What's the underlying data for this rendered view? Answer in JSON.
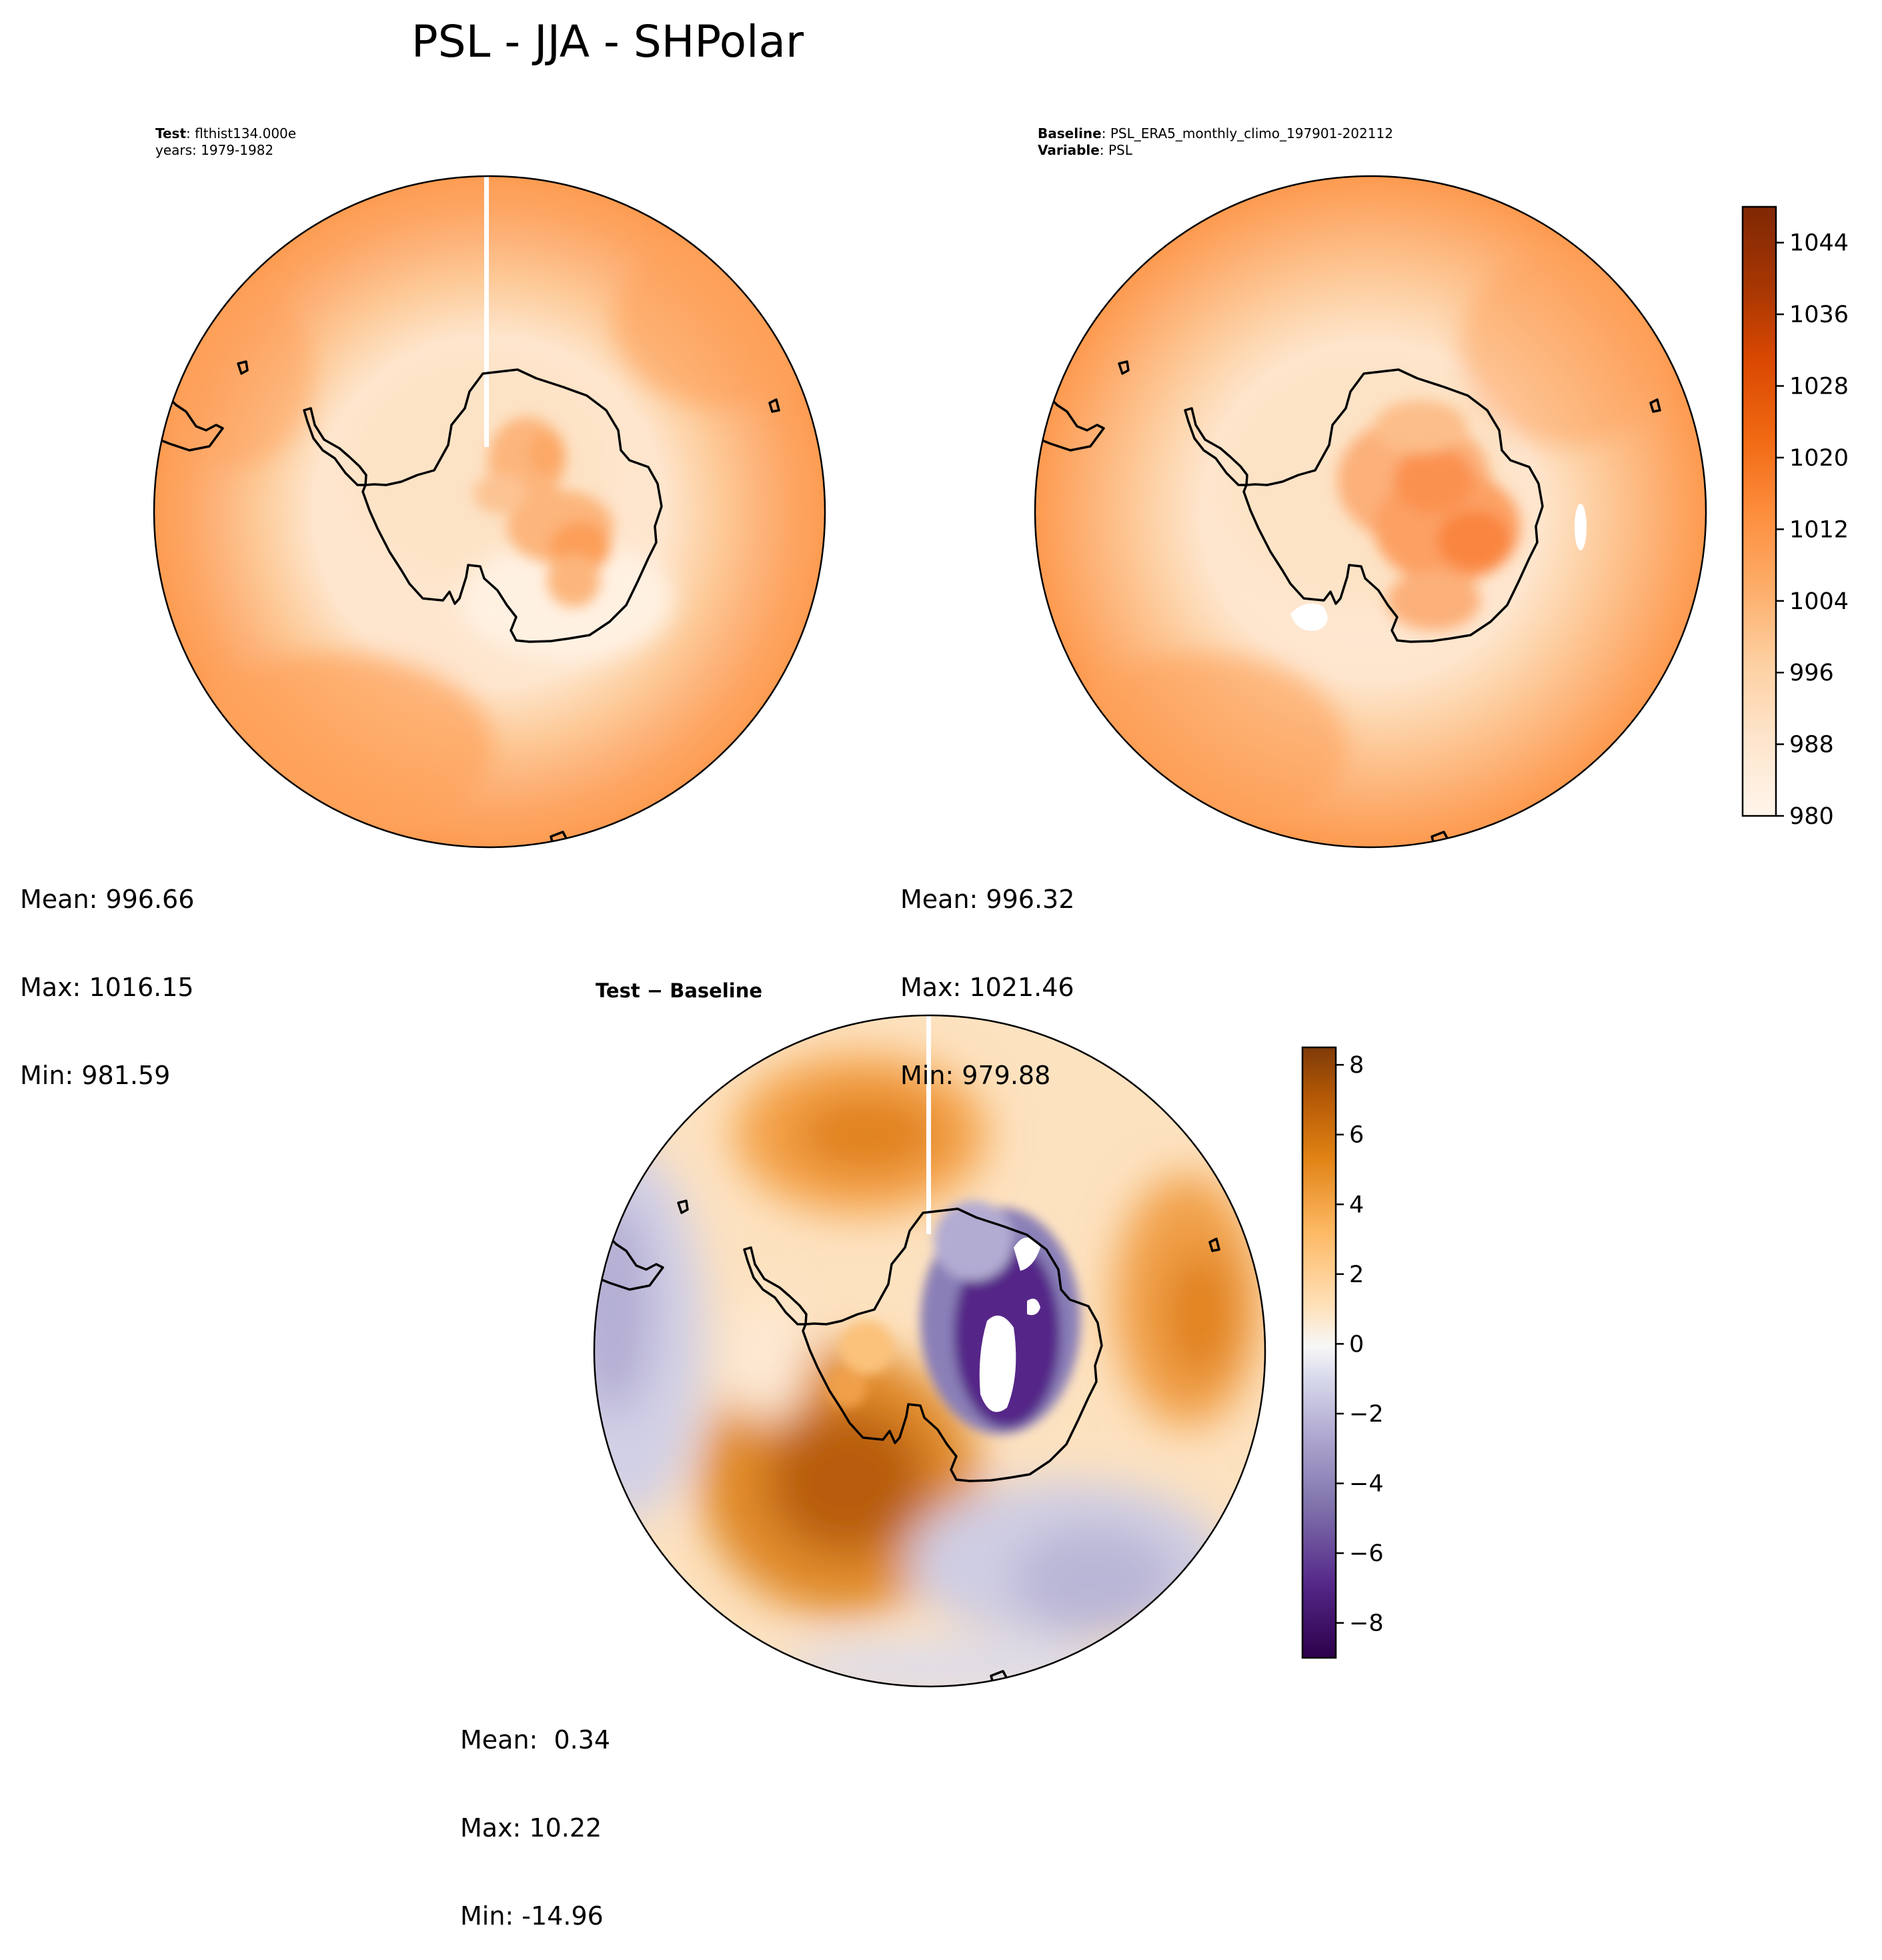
{
  "figure": {
    "title": "PSL - JJA - SHPolar"
  },
  "panels": {
    "test": {
      "label_key": "Test",
      "label_value": "flthist134.000e",
      "label_line2": "years: 1979-1982",
      "stats": {
        "mean": "Mean: 996.66",
        "max": "Max: 1016.15",
        "min": "Min: 981.59"
      }
    },
    "baseline": {
      "label_key": "Baseline",
      "label_value": "PSL_ERA5_monthly_climo_197901-202112",
      "label_key2": "Variable",
      "label_value2": "PSL",
      "stats": {
        "mean": "Mean: 996.32",
        "max": "Max: 1021.46",
        "min": "Min: 979.88"
      }
    },
    "diff": {
      "label": "Test − Baseline",
      "stats": {
        "mean": "Mean:  0.34",
        "max": "Max: 10.22",
        "min": "Min: -14.96"
      }
    }
  },
  "chart_data": [
    {
      "type": "heatmap",
      "projection": "south-polar-stereographic",
      "panel": "test",
      "colormap": "Oranges",
      "value_range": [
        980,
        1048
      ],
      "summary": {
        "mean": 996.66,
        "max": 1016.15,
        "min": 981.59
      }
    },
    {
      "type": "heatmap",
      "projection": "south-polar-stereographic",
      "panel": "baseline",
      "colormap": "Oranges",
      "value_range": [
        980,
        1048
      ],
      "summary": {
        "mean": 996.32,
        "max": 1021.46,
        "min": 979.88
      },
      "colorbar": {
        "ticks": [
          "980",
          "988",
          "996",
          "1004",
          "1012",
          "1020",
          "1028",
          "1036",
          "1044"
        ],
        "tick_values": [
          980,
          988,
          996,
          1004,
          1012,
          1020,
          1028,
          1036,
          1044
        ],
        "range": [
          980,
          1048
        ]
      }
    },
    {
      "type": "heatmap",
      "projection": "south-polar-stereographic",
      "panel": "diff",
      "colormap": "PuOr_r",
      "value_range": [
        -9,
        8.5
      ],
      "summary": {
        "mean": 0.34,
        "max": 10.22,
        "min": -14.96
      },
      "colorbar": {
        "ticks": [
          "−8",
          "−6",
          "−4",
          "−2",
          "0",
          "2",
          "4",
          "6",
          "8"
        ],
        "tick_values": [
          -8,
          -6,
          -4,
          -2,
          0,
          2,
          4,
          6,
          8
        ],
        "range": [
          -9,
          8.5
        ]
      }
    }
  ],
  "colors": {
    "oranges": [
      "#fff5eb",
      "#fee6ce",
      "#fdd0a2",
      "#fdae6b",
      "#fd8d3c",
      "#f16913",
      "#d94801",
      "#a63603",
      "#7f2704"
    ],
    "puor": [
      "#2d004b",
      "#542788",
      "#8073ac",
      "#b2abd2",
      "#d8daeb",
      "#f7f7f7",
      "#fee0b6",
      "#fdb863",
      "#e08214",
      "#b35806",
      "#7f3b08"
    ]
  }
}
